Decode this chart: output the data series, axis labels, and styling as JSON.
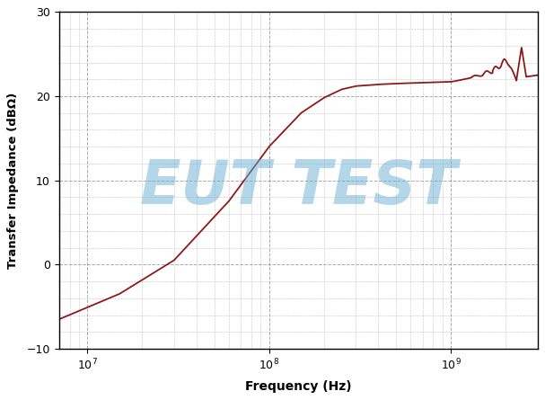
{
  "title": "",
  "xlabel": "Frequency (Hz)",
  "ylabel": "Transfer Impedance (dBΩ)",
  "xlim_log": [
    7000000.0,
    3000000000.0
  ],
  "ylim": [
    -10,
    30
  ],
  "yticks": [
    -10,
    0,
    10,
    20,
    30
  ],
  "line_color": "#8B1A1A",
  "line_width": 1.3,
  "background_color": "#ffffff",
  "watermark_text": "EUT TEST",
  "watermark_color": "#6aafd4",
  "watermark_alpha": 0.5,
  "grid_color": "#888888",
  "watermark_fontsize": 48
}
